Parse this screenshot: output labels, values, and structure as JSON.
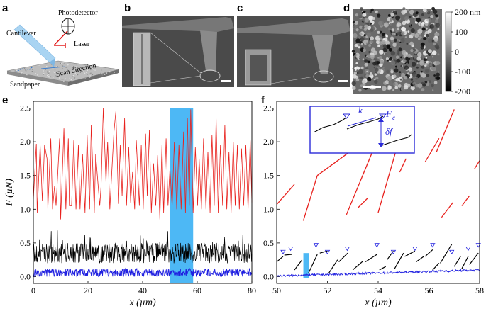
{
  "panels": {
    "a": {
      "label": "a",
      "photodetector": "Photodetector",
      "cantilever": "Cantilever",
      "laser": "Laser",
      "scan_direction": "Scan direction",
      "sandpaper": "Sandpaper"
    },
    "b": {
      "label": "b"
    },
    "c": {
      "label": "c"
    },
    "d": {
      "label": "d",
      "colorbar_ticks": [
        "200 nm",
        "100",
        "0",
        "-100",
        "-200"
      ]
    },
    "e": {
      "label": "e"
    },
    "f": {
      "label": "f",
      "inset_k": "k",
      "inset_fc": "F",
      "inset_fc_sub": "c",
      "inset_df": "δf"
    }
  },
  "colors": {
    "red": "#e8211d",
    "black": "#000000",
    "blue": "#1f1fe0",
    "highlight": "#4db8f5",
    "inset_border": "#2a2ad8"
  },
  "chart_data": [
    {
      "type": "line",
      "panel": "e",
      "xlabel": "x (µm)",
      "ylabel": "F (µN)",
      "xlim": [
        0,
        80
      ],
      "ylim": [
        -0.1,
        2.6
      ],
      "xticks": [
        0,
        20,
        40,
        60,
        80
      ],
      "yticks": [
        0.0,
        0.5,
        1.0,
        1.5,
        2.0,
        2.5
      ],
      "highlight_x": [
        50,
        58.5
      ],
      "series": [
        {
          "color": "red",
          "x": [
            0,
            1.1,
            1.4,
            2.5,
            3.3,
            4.1,
            5.0,
            5.3,
            6.4,
            7.0,
            7.8,
            8.3,
            9.6,
            10.0,
            11.2,
            11.9,
            12.8,
            13.2,
            14.0,
            14.8,
            15.6,
            16.5,
            17.1,
            18.0,
            18.9,
            19.7,
            20.6,
            21.2,
            22.3,
            22.8,
            24.3,
            24.8,
            25.6,
            26.6,
            27.2,
            28.0,
            28.9,
            29.5,
            30.2,
            31.2,
            31.8,
            32.5,
            33.4,
            34.1,
            34.9,
            35.6,
            36.3,
            37.1,
            37.7,
            38.8,
            39.5,
            40.2,
            41.1,
            41.7,
            42.5,
            43.2,
            44.0,
            44.8,
            45.5,
            46.3,
            47.1,
            47.7,
            48.6,
            49.3,
            50.0,
            50.8,
            51.6,
            52.5,
            53.3,
            54.1,
            55.0,
            55.7,
            56.4,
            57.1,
            57.6,
            58.5,
            59.3,
            60.1,
            60.7,
            61.5,
            62.3,
            63.2,
            63.9,
            64.7,
            65.4,
            66.2,
            66.9,
            67.7,
            68.5,
            69.3,
            70.1,
            70.8,
            71.6,
            72.4,
            73.2,
            73.9,
            74.7,
            75.4,
            76.2,
            77.0,
            77.8,
            78.6,
            79.4,
            80.0
          ],
          "y": [
            1.15,
            1.97,
            0.95,
            1.95,
            1.12,
            1.95,
            1.75,
            1.0,
            2.05,
            1.0,
            1.35,
            1.05,
            2.05,
            0.85,
            2.2,
            1.0,
            2.05,
            1.05,
            1.05,
            2.02,
            1.0,
            1.95,
            1.0,
            1.82,
            0.95,
            2.1,
            1.0,
            2.25,
            0.95,
            1.82,
            1.05,
            1.35,
            2.5,
            1.4,
            2.0,
            1.0,
            1.7,
            2.15,
            2.45,
            1.08,
            1.95,
            1.2,
            2.35,
            1.05,
            1.92,
            1.1,
            1.55,
            1.0,
            2.02,
            1.05,
            1.95,
            1.0,
            2.12,
            1.2,
            2.18,
            0.95,
            1.68,
            1.05,
            1.8,
            0.85,
            1.95,
            0.95,
            2.05,
            1.05,
            1.6,
            1.05,
            2.0,
            1.0,
            1.95,
            1.0,
            2.15,
            0.95,
            2.35,
            1.05,
            2.48,
            0.95,
            1.92,
            1.05,
            1.75,
            1.0,
            2.05,
            1.0,
            1.85,
            0.95,
            2.1,
            1.05,
            2.35,
            0.95,
            1.95,
            1.05,
            2.25,
            1.0,
            1.85,
            0.95,
            2.0,
            1.05,
            1.95,
            1.0,
            1.9,
            1.05,
            1.95,
            1.0,
            2.02,
            1.1
          ]
        },
        {
          "color": "black",
          "baseline": 0.35,
          "amplitude": 0.15
        },
        {
          "color": "blue",
          "baseline": 0.06,
          "amplitude": 0.06
        }
      ]
    },
    {
      "type": "line",
      "panel": "f",
      "xlabel": "x (µm)",
      "xlim": [
        50,
        58
      ],
      "ylim": [
        -0.1,
        2.6
      ],
      "xticks": [
        50,
        52,
        54,
        56,
        58
      ],
      "yticks": [
        0.0,
        0.5,
        1.0,
        1.5,
        2.0,
        2.5
      ],
      "highlight_x": [
        51.05,
        51.28
      ],
      "red_segments": [
        [
          50.0,
          1.07,
          50.7,
          1.37
        ],
        [
          51.05,
          0.83,
          51.6,
          1.5
        ],
        [
          51.6,
          1.5,
          52.8,
          1.83
        ],
        [
          52.75,
          0.92,
          53.85,
          1.92
        ],
        [
          53.2,
          1.02,
          53.6,
          1.17
        ],
        [
          54.0,
          0.95,
          55.05,
          2.32
        ],
        [
          54.85,
          1.55,
          55.1,
          1.75
        ],
        [
          55.85,
          1.7,
          56.4,
          2.05
        ],
        [
          56.3,
          1.85,
          57.0,
          2.48
        ],
        [
          56.5,
          0.88,
          56.95,
          1.1
        ],
        [
          57.3,
          1.05,
          57.6,
          1.2
        ],
        [
          57.8,
          1.6,
          58.0,
          1.72
        ]
      ],
      "black_segments": [
        [
          50.0,
          0.22,
          50.25,
          0.3
        ],
        [
          50.3,
          0.32,
          50.6,
          0.33
        ],
        [
          50.7,
          0.1,
          51.0,
          0.25
        ],
        [
          51.25,
          0.05,
          51.6,
          0.33
        ],
        [
          51.7,
          0.35,
          52.0,
          0.38
        ],
        [
          52.05,
          0.05,
          52.4,
          0.25
        ],
        [
          52.45,
          0.22,
          52.8,
          0.35
        ],
        [
          53.0,
          0.1,
          53.4,
          0.23
        ],
        [
          53.5,
          0.22,
          53.95,
          0.33
        ],
        [
          54.05,
          0.1,
          54.3,
          0.15
        ],
        [
          54.35,
          0.25,
          54.6,
          0.38
        ],
        [
          54.65,
          0.12,
          55.0,
          0.35
        ],
        [
          55.05,
          0.3,
          55.45,
          0.38
        ],
        [
          55.5,
          0.22,
          55.8,
          0.3
        ],
        [
          55.85,
          0.3,
          56.15,
          0.4
        ],
        [
          56.15,
          0.1,
          56.4,
          0.2
        ],
        [
          56.45,
          0.2,
          56.9,
          0.48
        ],
        [
          57.0,
          0.15,
          57.25,
          0.3
        ],
        [
          57.3,
          0.12,
          57.55,
          0.3
        ],
        [
          57.6,
          0.18,
          57.95,
          0.35
        ]
      ],
      "fc_markers_x": [
        50.25,
        50.55,
        51.55,
        52.0,
        52.78,
        53.95,
        54.6,
        55.45,
        56.15,
        56.9,
        57.55,
        57.95
      ]
    }
  ]
}
